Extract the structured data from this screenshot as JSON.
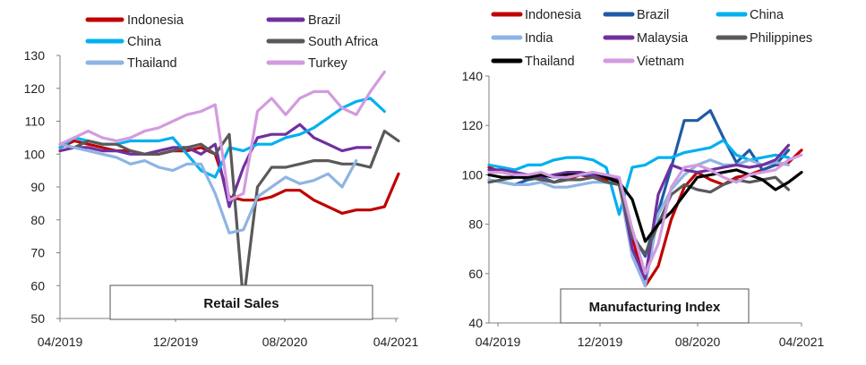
{
  "chart_data": [
    {
      "type": "line",
      "title": "Retail Sales",
      "ylim": [
        50,
        130
      ],
      "yticks": [
        50,
        60,
        70,
        80,
        90,
        100,
        110,
        120,
        130
      ],
      "x_tick_labels": [
        "04/2019",
        "12/2019",
        "08/2020",
        "04/2021"
      ],
      "x_range": [
        0,
        24
      ],
      "legend_cols": 2,
      "series": [
        {
          "name": "Indonesia",
          "color": "#c00000",
          "x_start": 0,
          "values": [
            102,
            104,
            103,
            102,
            101,
            101,
            100,
            100,
            101,
            101,
            102,
            100,
            87,
            86,
            86,
            87,
            89,
            89,
            86,
            84,
            82,
            83,
            83,
            84,
            94
          ]
        },
        {
          "name": "Brazil",
          "color": "#7030a0",
          "x_start": 0,
          "values": [
            101,
            102,
            102,
            101,
            101,
            100,
            100,
            101,
            102,
            102,
            100,
            103,
            84,
            96,
            105,
            106,
            106,
            109,
            105,
            103,
            101,
            102,
            102
          ]
        },
        {
          "name": "China",
          "color": "#00b0f0",
          "x_start": 0,
          "values": [
            102,
            105,
            104,
            103,
            103,
            104,
            104,
            104,
            105,
            100,
            95,
            93,
            102,
            101,
            103,
            103,
            105,
            106,
            108,
            111,
            114,
            116,
            117,
            113
          ]
        },
        {
          "name": "South Africa",
          "color": "#595959",
          "x_start": 0,
          "values": [
            103,
            102,
            104,
            103,
            103,
            101,
            100,
            100,
            101,
            102,
            103,
            100,
            106,
            55,
            90,
            96,
            96,
            97,
            98,
            98,
            97,
            97,
            96,
            107,
            104
          ]
        },
        {
          "name": "Thailand",
          "color": "#8eb4e3",
          "x_start": 0,
          "values": [
            103,
            102,
            101,
            100,
            99,
            97,
            98,
            96,
            95,
            97,
            97,
            88,
            76,
            77,
            87,
            90,
            93,
            91,
            92,
            94,
            90,
            98
          ]
        },
        {
          "name": "Turkey",
          "color": "#d39be0",
          "x_start": 0,
          "values": [
            103,
            105,
            107,
            105,
            104,
            105,
            107,
            108,
            110,
            112,
            113,
            115,
            86,
            88,
            113,
            117,
            112,
            117,
            119,
            119,
            114,
            112,
            119,
            125
          ]
        }
      ]
    },
    {
      "type": "line",
      "title": "Manufacturing Index",
      "ylim": [
        40,
        140
      ],
      "yticks": [
        40,
        60,
        80,
        100,
        120,
        140
      ],
      "x_tick_labels": [
        "04/2019",
        "12/2019",
        "08/2020",
        "04/2021"
      ],
      "x_range": [
        0,
        24
      ],
      "legend_cols": 3,
      "series": [
        {
          "name": "Indonesia",
          "color": "#c00000",
          "x_start": 0,
          "values": [
            103,
            101,
            100,
            98,
            99,
            97,
            98,
            100,
            99,
            98,
            96,
            75,
            55,
            63,
            82,
            95,
            101,
            98,
            96,
            99,
            100,
            102,
            104,
            105,
            110
          ]
        },
        {
          "name": "Brazil",
          "color": "#1f5aa6",
          "x_start": 0,
          "values": [
            98,
            97,
            96,
            98,
            99,
            97,
            99,
            100,
            100,
            99,
            98,
            76,
            67,
            85,
            103,
            122,
            122,
            126,
            115,
            105,
            110,
            102,
            104,
            110
          ]
        },
        {
          "name": "China",
          "color": "#00b0f0",
          "x_start": 0,
          "values": [
            104,
            103,
            102,
            104,
            104,
            106,
            107,
            107,
            106,
            103,
            84,
            103,
            104,
            107,
            107,
            109,
            110,
            111,
            114,
            108,
            106,
            107,
            108,
            107
          ]
        },
        {
          "name": "India",
          "color": "#8eb4e3",
          "x_start": 0,
          "values": [
            98,
            97,
            96,
            96,
            97,
            95,
            95,
            96,
            97,
            97,
            96,
            67,
            55,
            84,
            94,
            100,
            104,
            106,
            104,
            104,
            106,
            104,
            105,
            104
          ]
        },
        {
          "name": "Malaysia",
          "color": "#7030a0",
          "x_start": 0,
          "values": [
            102,
            102,
            101,
            100,
            99,
            100,
            101,
            101,
            100,
            99,
            98,
            70,
            58,
            92,
            104,
            102,
            101,
            102,
            103,
            104,
            103,
            104,
            106,
            112
          ]
        },
        {
          "name": "Philippines",
          "color": "#595959",
          "x_start": 0,
          "values": [
            97,
            98,
            99,
            99,
            98,
            97,
            98,
            98,
            99,
            97,
            96,
            75,
            68,
            80,
            92,
            96,
            94,
            93,
            96,
            98,
            97,
            98,
            99,
            94
          ]
        },
        {
          "name": "Thailand",
          "color": "#000000",
          "x_start": 0,
          "values": [
            100,
            99,
            99,
            99,
            100,
            99,
            100,
            100,
            101,
            99,
            97,
            90,
            73,
            80,
            85,
            92,
            99,
            100,
            101,
            102,
            100,
            98,
            94,
            97,
            101
          ]
        },
        {
          "name": "Vietnam",
          "color": "#d39be0",
          "x_start": 0,
          "values": [
            101,
            101,
            100,
            100,
            101,
            99,
            99,
            100,
            101,
            100,
            99,
            78,
            60,
            72,
            95,
            103,
            104,
            102,
            99,
            97,
            100,
            101,
            102,
            106,
            108
          ]
        }
      ]
    }
  ]
}
